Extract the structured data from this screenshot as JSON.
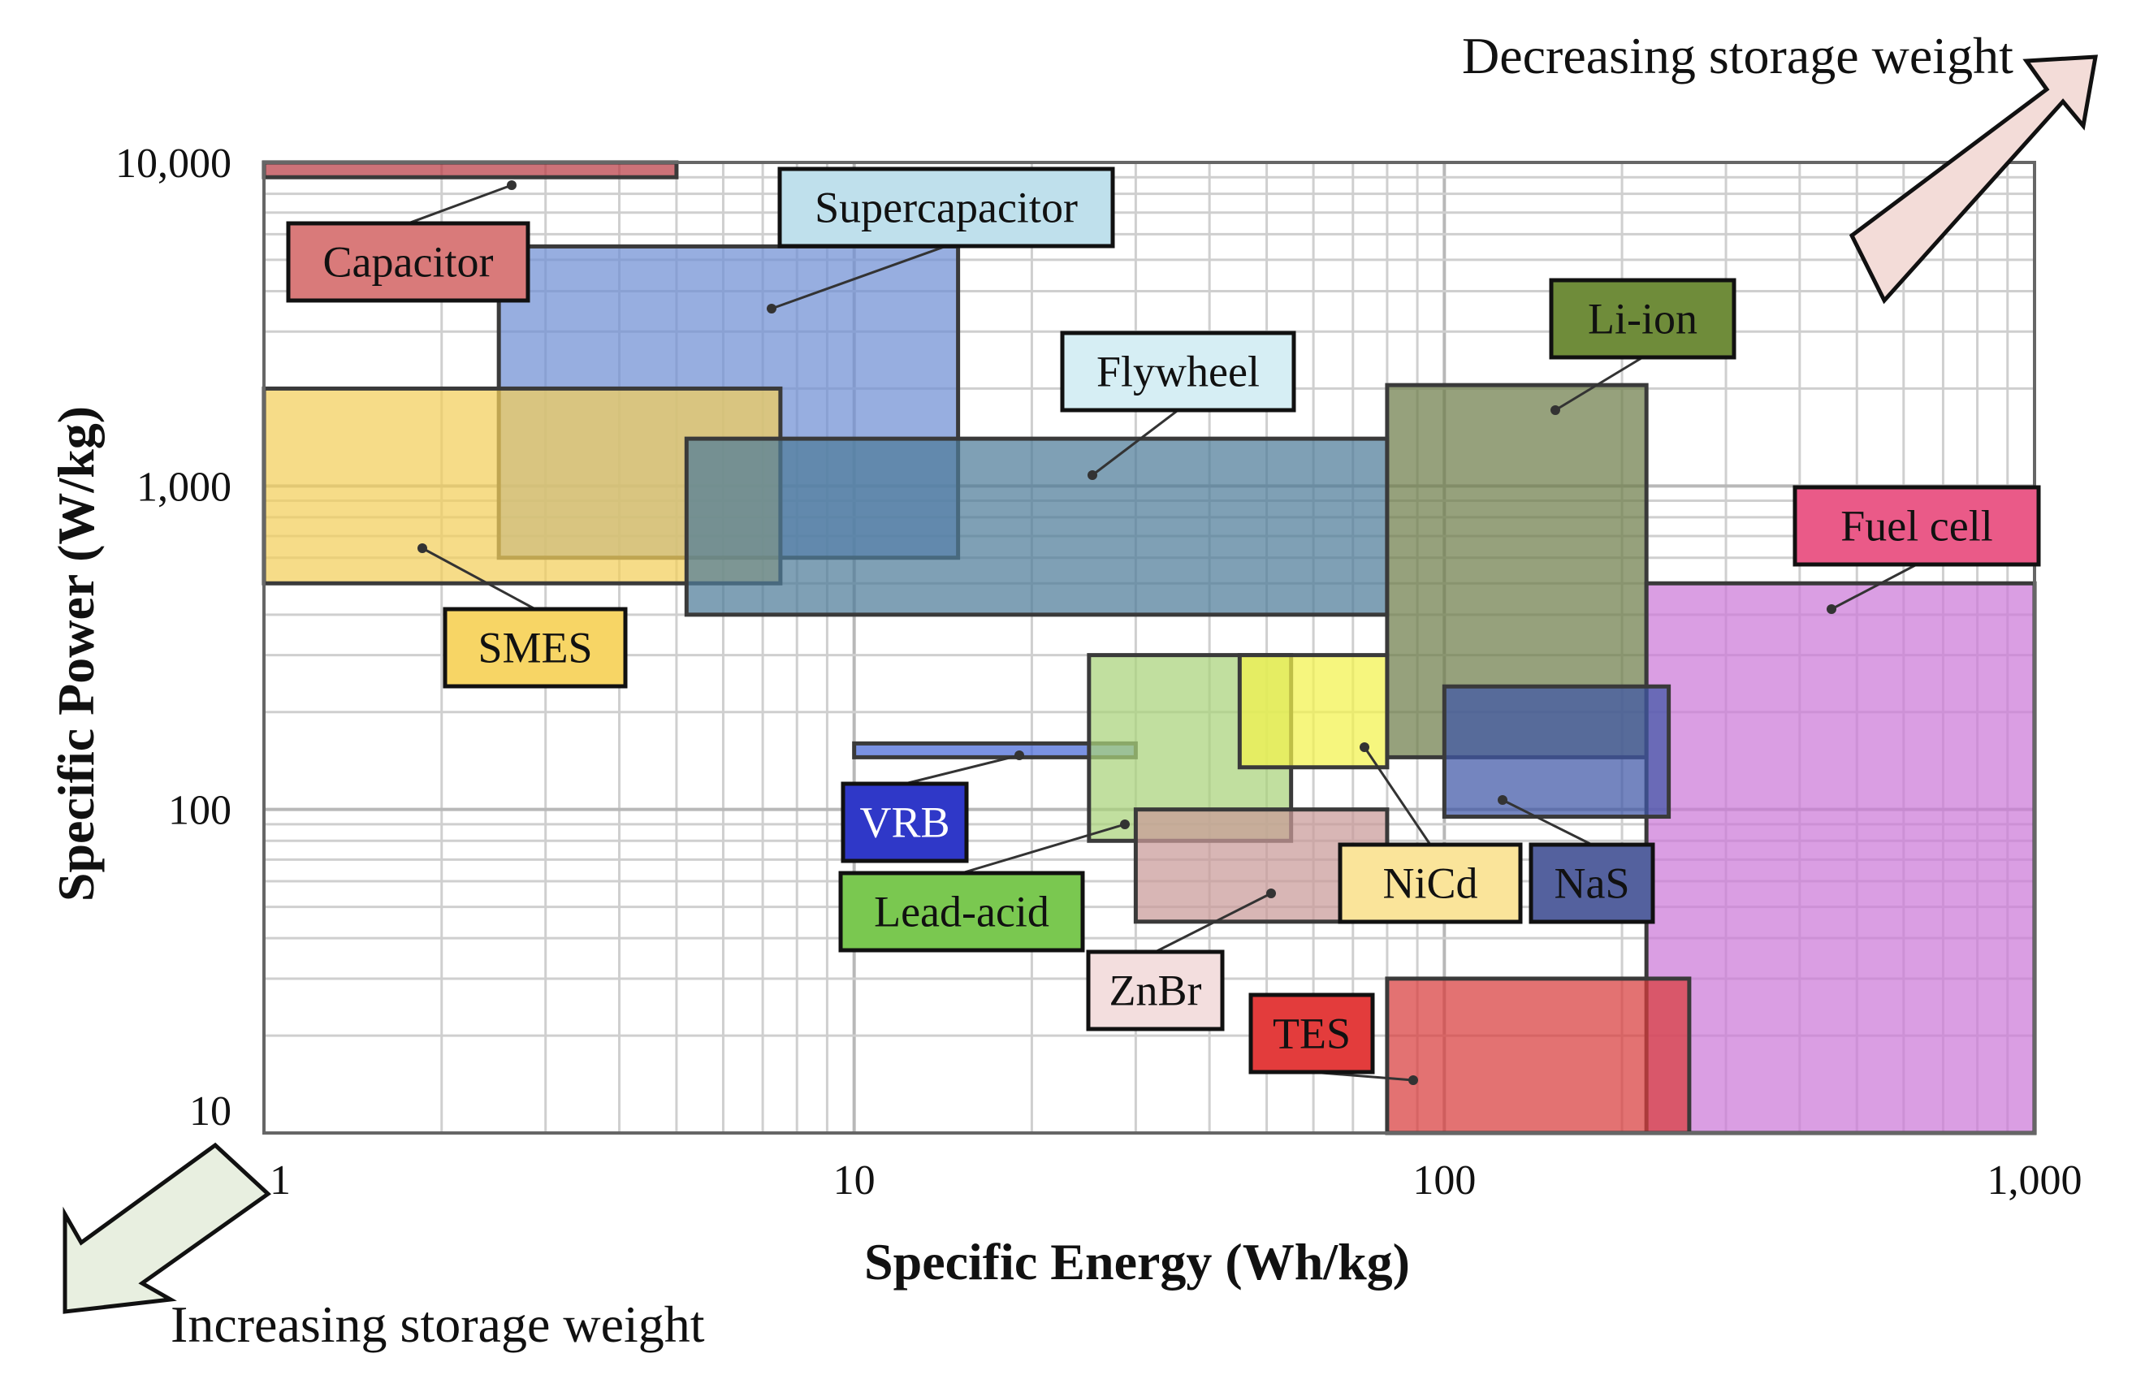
{
  "chart_data": {
    "type": "range-box",
    "xlabel": "Specific Energy (Wh/kg)",
    "ylabel": "Specific Power (W/kg)",
    "x_scale": "log",
    "y_scale": "log",
    "xlim": [
      1,
      1000
    ],
    "ylim": [
      10,
      10000
    ],
    "x_ticks": [
      1,
      10,
      100,
      1000
    ],
    "x_tick_labels": [
      "1",
      "10",
      "100",
      "1,000"
    ],
    "y_ticks": [
      10,
      100,
      1000,
      10000
    ],
    "y_tick_labels": [
      "10",
      "100",
      "1,000",
      "10,000"
    ],
    "grid": true,
    "annotations": {
      "top_right": "Decreasing storage weight",
      "bottom_left": "Increasing storage weight"
    },
    "series": [
      {
        "name": "Capacitor",
        "energy": [
          1,
          5
        ],
        "power": [
          9000,
          10000
        ],
        "color": "#b93c44",
        "label_bg": "#d97a7a",
        "label_fg": "#111111"
      },
      {
        "name": "Supercapacitor",
        "energy": [
          2.5,
          15
        ],
        "power": [
          600,
          5500
        ],
        "color": "#6f8fd4",
        "label_bg": "#bfe0ec",
        "label_fg": "#111111"
      },
      {
        "name": "SMES",
        "energy": [
          1,
          7.5
        ],
        "power": [
          500,
          2000
        ],
        "color": "#f3ce5a",
        "label_bg": "#f7d565",
        "label_fg": "#111111"
      },
      {
        "name": "Flywheel",
        "energy": [
          5.2,
          80
        ],
        "power": [
          400,
          1400
        ],
        "color": "#4d7c98",
        "label_bg": "#d6eef4",
        "label_fg": "#111111"
      },
      {
        "name": "Li-ion",
        "energy": [
          80,
          220
        ],
        "power": [
          145,
          2050
        ],
        "color": "#6e7d4a",
        "label_bg": "#6f8c3a",
        "label_fg": "#111111"
      },
      {
        "name": "Fuel cell",
        "energy": [
          220,
          1000
        ],
        "power": [
          10,
          500
        ],
        "color": "#cc78d8",
        "label_bg": "#ea5a88",
        "label_fg": "#111111"
      },
      {
        "name": "VRB",
        "energy": [
          10,
          30
        ],
        "power": [
          145,
          160
        ],
        "color": "#4768d8",
        "label_bg": "#2f38c8",
        "label_fg": "#ffffff"
      },
      {
        "name": "Lead-acid",
        "energy": [
          25,
          55
        ],
        "power": [
          80,
          300
        ],
        "color": "#a9d27a",
        "label_bg": "#7ac850",
        "label_fg": "#111111"
      },
      {
        "name": "NiCd",
        "energy": [
          45,
          80
        ],
        "power": [
          135,
          300
        ],
        "color": "#f2f24c",
        "label_bg": "#fae49a",
        "label_fg": "#111111"
      },
      {
        "name": "ZnBr",
        "energy": [
          30,
          80
        ],
        "power": [
          45,
          100
        ],
        "color": "#c99a98",
        "label_bg": "#f3dede",
        "label_fg": "#111111"
      },
      {
        "name": "NaS",
        "energy": [
          100,
          240
        ],
        "power": [
          95,
          240
        ],
        "color": "#3f56a6",
        "label_bg": "#54619e",
        "label_fg": "#111111"
      },
      {
        "name": "TES",
        "energy": [
          80,
          260
        ],
        "power": [
          10,
          30
        ],
        "color": "#d83c3c",
        "label_bg": "#e33c3c",
        "label_fg": "#111111"
      }
    ]
  }
}
